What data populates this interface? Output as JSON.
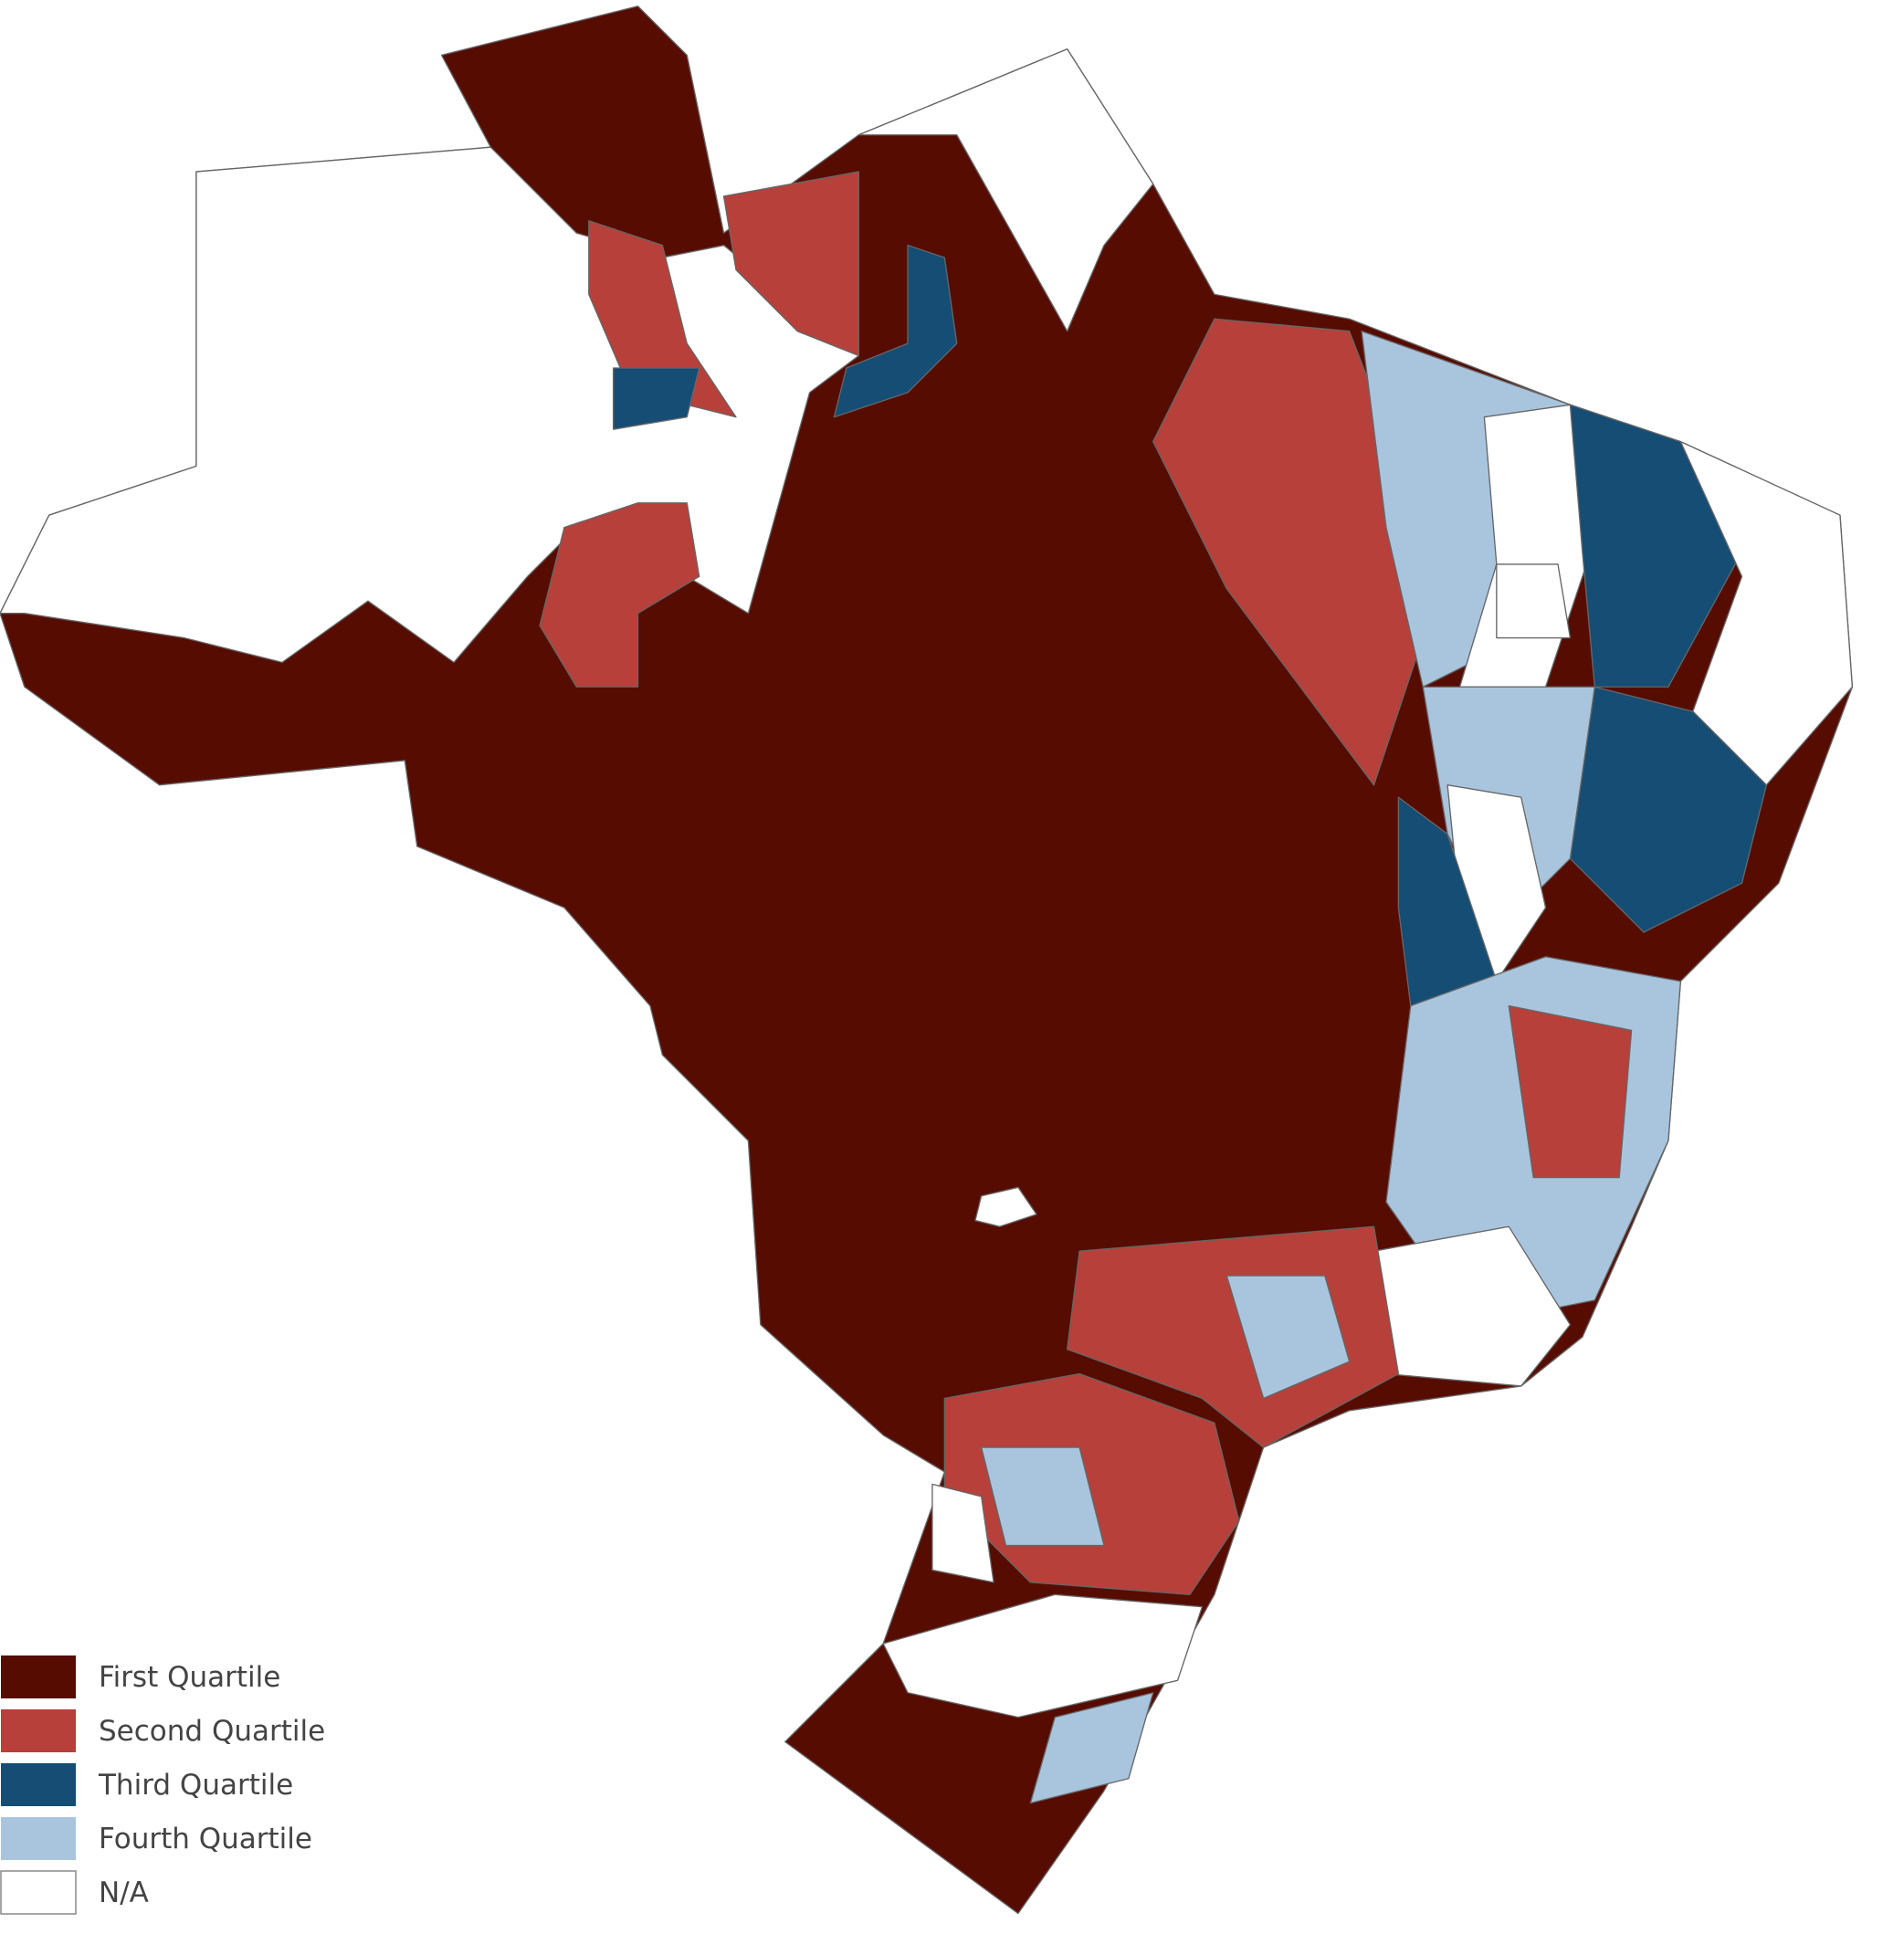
{
  "legend": {
    "items": [
      {
        "label": "First Quartile",
        "color": "#560c00"
      },
      {
        "label": "Second Quartile",
        "color": "#b7403a"
      },
      {
        "label": "Third Quartile",
        "color": "#154d74"
      },
      {
        "label": "Fourth Quartile",
        "color": "#a9c5de"
      },
      {
        "label": "N/A",
        "color": "#ffffff"
      }
    ]
  }
}
